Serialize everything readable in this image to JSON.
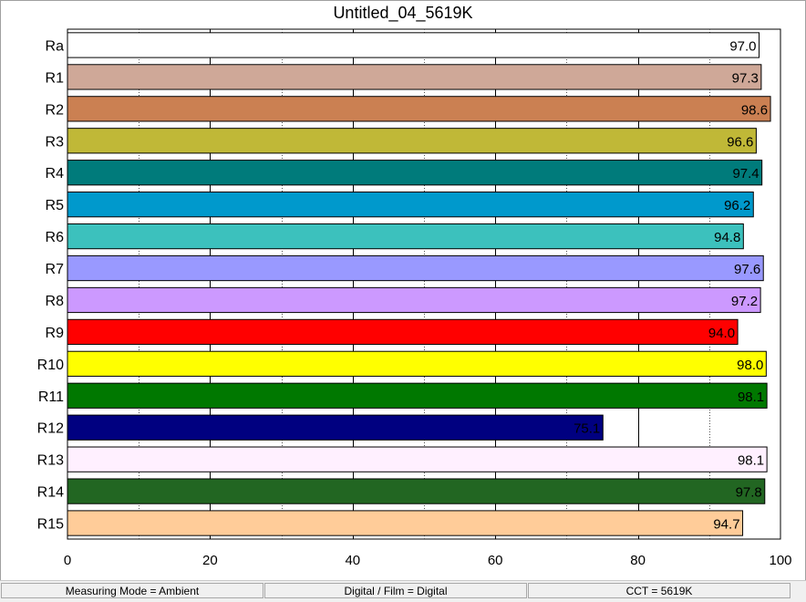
{
  "chart_data": {
    "type": "bar",
    "orientation": "horizontal",
    "title": "Untitled_04_5619K",
    "categories": [
      "Ra",
      "R1",
      "R2",
      "R3",
      "R4",
      "R5",
      "R6",
      "R7",
      "R8",
      "R9",
      "R10",
      "R11",
      "R12",
      "R13",
      "R14",
      "R15"
    ],
    "values": [
      97.0,
      97.3,
      98.6,
      96.6,
      97.4,
      96.2,
      94.8,
      97.6,
      97.2,
      94.0,
      98.0,
      98.1,
      75.1,
      98.1,
      97.8,
      94.7
    ],
    "value_labels": [
      "97.0",
      "97.3",
      "98.6",
      "96.6",
      "97.4",
      "96.2",
      "94.8",
      "97.6",
      "97.2",
      "94.0",
      "98.0",
      "98.1",
      "75.1",
      "98.1",
      "97.8",
      "94.7"
    ],
    "colors": [
      "#ffffff",
      "#cfa898",
      "#cb8052",
      "#c0b837",
      "#007b7b",
      "#0099cc",
      "#3cc1bd",
      "#9999ff",
      "#cc99ff",
      "#ff0000",
      "#ffff00",
      "#007800",
      "#000080",
      "#fff0ff",
      "#226622",
      "#ffcc99"
    ],
    "xlim": [
      0,
      100
    ],
    "xticks": [
      "0",
      "20",
      "40",
      "60",
      "80",
      "100"
    ],
    "xtick_values": [
      0,
      20,
      40,
      60,
      80,
      100
    ],
    "grid": {
      "major_every": 20,
      "minor_every": 10,
      "major_style": "solid",
      "minor_style": "dotted"
    },
    "xlabel": "",
    "ylabel": ""
  },
  "status_bar": {
    "measuring_mode": "Measuring Mode = Ambient",
    "digital_film": "Digital / Film = Digital",
    "cct": "CCT = 5619K"
  }
}
